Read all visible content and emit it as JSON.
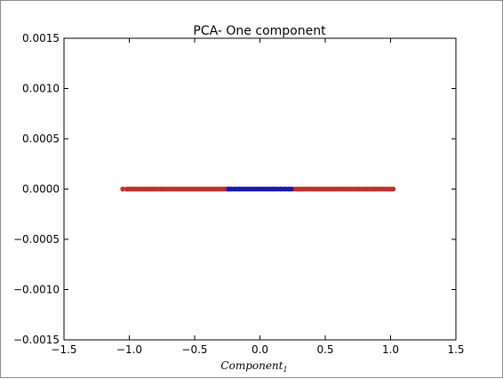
{
  "chart_data": {
    "type": "scatter",
    "title": "PCA- One component",
    "xlabel": "Component",
    "xlabel_subscript": "1",
    "ylabel": "",
    "xlim": [
      -1.5,
      1.5
    ],
    "ylim": [
      -0.0015,
      0.0015
    ],
    "xticks": [
      "−1.5",
      "−1.0",
      "−0.5",
      "0.0",
      "0.5",
      "1.0",
      "1.5"
    ],
    "yticks": [
      "−0.0015",
      "−0.0010",
      "−0.0005",
      "0.0000",
      "0.0005",
      "0.0010",
      "0.0015"
    ],
    "grid": false,
    "series": [
      {
        "color": "#c0312b",
        "x": [
          -1.05,
          -1.02,
          -1.0,
          -0.98,
          -0.96,
          -0.94,
          -0.92,
          -0.9,
          -0.88,
          -0.86,
          -0.84,
          -0.82,
          -0.8,
          -0.78,
          -0.76,
          -0.74,
          -0.72,
          -0.7,
          -0.68,
          -0.66,
          -0.64,
          -0.62,
          -0.6,
          -0.58,
          -0.56,
          -0.54,
          -0.52,
          -0.5,
          -0.48,
          -0.46,
          -0.44,
          -0.42,
          -0.4,
          -0.38,
          -0.36,
          -0.34,
          -0.32,
          -0.3,
          -0.28,
          -0.26,
          -0.24,
          0.26,
          0.28,
          0.3,
          0.32,
          0.34,
          0.36,
          0.38,
          0.4,
          0.42,
          0.44,
          0.46,
          0.48,
          0.5,
          0.52,
          0.54,
          0.56,
          0.58,
          0.6,
          0.62,
          0.64,
          0.66,
          0.68,
          0.7,
          0.72,
          0.74,
          0.76,
          0.78,
          0.8,
          0.82,
          0.84,
          0.86,
          0.88,
          0.9,
          0.92,
          0.94,
          0.96,
          0.98,
          1.0,
          1.02
        ],
        "y": [
          0,
          0,
          0,
          0,
          0,
          0,
          0,
          0,
          0,
          0,
          0,
          0,
          0,
          0,
          0,
          0,
          0,
          0,
          0,
          0,
          0,
          0,
          0,
          0,
          0,
          0,
          0,
          0,
          0,
          0,
          0,
          0,
          0,
          0,
          0,
          0,
          0,
          0,
          0,
          0,
          0,
          0,
          0,
          0,
          0,
          0,
          0,
          0,
          0,
          0,
          0,
          0,
          0,
          0,
          0,
          0,
          0,
          0,
          0,
          0,
          0,
          0,
          0,
          0,
          0,
          0,
          0,
          0,
          0,
          0,
          0,
          0,
          0,
          0,
          0,
          0,
          0,
          0,
          0,
          0
        ]
      },
      {
        "color": "#1a1ab0",
        "x": [
          -0.24,
          -0.22,
          -0.2,
          -0.18,
          -0.16,
          -0.14,
          -0.12,
          -0.1,
          -0.08,
          -0.06,
          -0.04,
          -0.02,
          0.0,
          0.02,
          0.04,
          0.06,
          0.08,
          0.1,
          0.12,
          0.14,
          0.16,
          0.18,
          0.2,
          0.22,
          0.24
        ],
        "y": [
          0,
          0,
          0,
          0,
          0,
          0,
          0,
          0,
          0,
          0,
          0,
          0,
          0,
          0,
          0,
          0,
          0,
          0,
          0,
          0,
          0,
          0,
          0,
          0,
          0
        ]
      }
    ]
  }
}
